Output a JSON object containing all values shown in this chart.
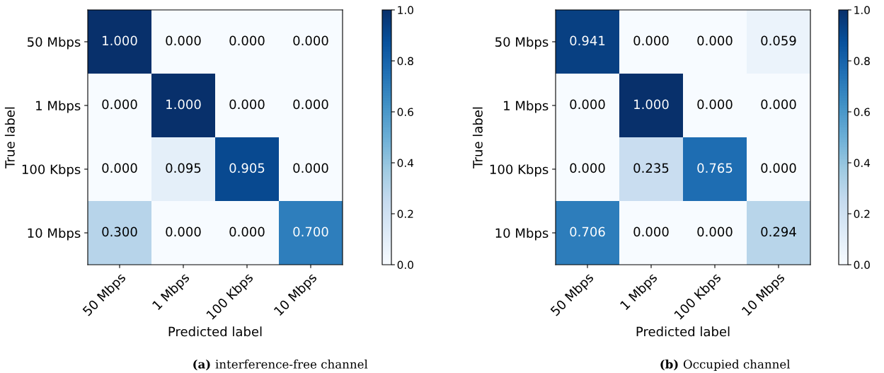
{
  "chart_data": [
    {
      "type": "heatmap",
      "xlabel": "Predicted label",
      "ylabel": "True label",
      "categories": [
        "50 Mbps",
        "1 Mbps",
        "100 Kbps",
        "10 Mbps"
      ],
      "y_categories": [
        "50 Mbps",
        "1 Mbps",
        "100 Kbps",
        "10 Mbps"
      ],
      "cells": [
        [
          1.0,
          0.0,
          0.0,
          0.0
        ],
        [
          0.0,
          1.0,
          0.0,
          0.0
        ],
        [
          0.0,
          0.095,
          0.905,
          0.0
        ],
        [
          0.3,
          0.0,
          0.0,
          0.7
        ]
      ],
      "cell_labels": [
        [
          "1.000",
          "0.000",
          "0.000",
          "0.000"
        ],
        [
          "0.000",
          "1.000",
          "0.000",
          "0.000"
        ],
        [
          "0.000",
          "0.095",
          "0.905",
          "0.000"
        ],
        [
          "0.300",
          "0.000",
          "0.000",
          "0.700"
        ]
      ],
      "clim": [
        0.0,
        1.0
      ],
      "cticks": [
        {
          "value": 0,
          "label": "0.0"
        },
        {
          "value": 0.2,
          "label": "0.2"
        },
        {
          "value": 0.4,
          "label": "0.4"
        },
        {
          "value": 0.6,
          "label": "0.6"
        },
        {
          "value": 0.8,
          "label": "0.8"
        },
        {
          "value": 1,
          "label": "1.0"
        }
      ],
      "annotations": [
        "(a) interference-free channel"
      ]
    },
    {
      "type": "heatmap",
      "xlabel": "Predicted label",
      "ylabel": "True label",
      "categories": [
        "50 Mbps",
        "1 Mbps",
        "100 Kbps",
        "10 Mbps"
      ],
      "y_categories": [
        "50 Mbps",
        "1 Mbps",
        "100 Kbps",
        "10 Mbps"
      ],
      "cells": [
        [
          0.941,
          0.0,
          0.0,
          0.059
        ],
        [
          0.0,
          1.0,
          0.0,
          0.0
        ],
        [
          0.0,
          0.235,
          0.765,
          0.0
        ],
        [
          0.706,
          0.0,
          0.0,
          0.294
        ]
      ],
      "cell_labels": [
        [
          "0.941",
          "0.000",
          "0.000",
          "0.059"
        ],
        [
          "0.000",
          "1.000",
          "0.000",
          "0.000"
        ],
        [
          "0.000",
          "0.235",
          "0.765",
          "0.000"
        ],
        [
          "0.706",
          "0.000",
          "0.000",
          "0.294"
        ]
      ],
      "clim": [
        0.0,
        1.0
      ],
      "cticks": [
        {
          "value": 0,
          "label": "0.0"
        },
        {
          "value": 0.2,
          "label": "0.2"
        },
        {
          "value": 0.4,
          "label": "0.4"
        },
        {
          "value": 0.6,
          "label": "0.6"
        },
        {
          "value": 0.8,
          "label": "0.8"
        },
        {
          "value": 1,
          "label": "1.0"
        }
      ],
      "annotations": [
        "(b) Occupied channel"
      ]
    }
  ]
}
